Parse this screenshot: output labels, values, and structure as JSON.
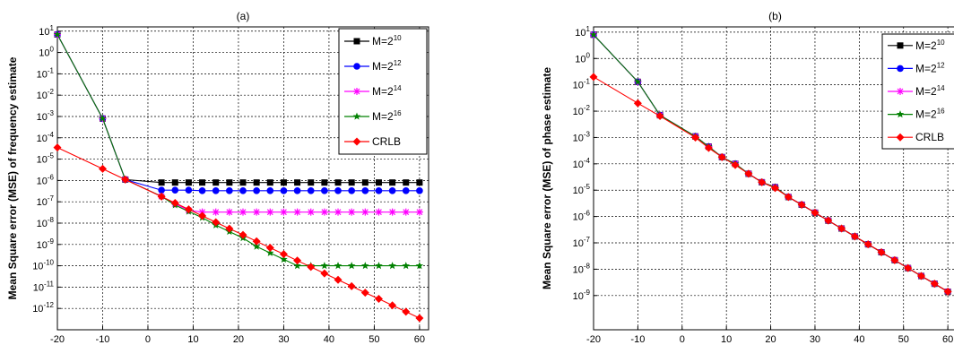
{
  "chart_data": [
    {
      "type": "line",
      "title": "(a)",
      "xlabel": "SNR (dB)",
      "ylabel": "Mean Square error (MSE) of frequency estimate",
      "x_ticks": [
        -20,
        -10,
        0,
        10,
        20,
        30,
        40,
        50,
        60
      ],
      "y_tick_exponents": [
        1,
        0,
        -1,
        -2,
        -3,
        -4,
        -5,
        -6,
        -7,
        -8,
        -9,
        -10,
        -11,
        -12
      ],
      "xlim": [
        -20,
        62
      ],
      "ylim_log10": [
        -13,
        1.2
      ],
      "y_scale": "log",
      "grid": true,
      "legend_position": "top-right",
      "series": [
        {
          "name": "M=2",
          "name_sup": "10",
          "color": "#000000",
          "marker": "square",
          "x": [
            -20,
            -10,
            -5,
            3,
            6,
            9,
            12,
            15,
            18,
            21,
            24,
            27,
            30,
            33,
            36,
            39,
            42,
            45,
            48,
            51,
            54,
            57,
            60
          ],
          "y": [
            7,
            0.0008,
            1.1e-06,
            8e-07,
            8e-07,
            8e-07,
            8e-07,
            8e-07,
            8e-07,
            8e-07,
            8e-07,
            8e-07,
            8e-07,
            8e-07,
            8e-07,
            8e-07,
            8e-07,
            8e-07,
            8e-07,
            8e-07,
            8e-07,
            8e-07,
            8e-07
          ]
        },
        {
          "name": "M=2",
          "name_sup": "12",
          "color": "#0000ff",
          "marker": "circle",
          "x": [
            -20,
            -10,
            -5,
            3,
            6,
            9,
            12,
            15,
            18,
            21,
            24,
            27,
            30,
            33,
            36,
            39,
            42,
            45,
            48,
            51,
            54,
            57,
            60
          ],
          "y": [
            7,
            0.0008,
            1.1e-06,
            3.5e-07,
            3.5e-07,
            3.5e-07,
            3.3e-07,
            3.3e-07,
            3.3e-07,
            3.3e-07,
            3.3e-07,
            3.3e-07,
            3.3e-07,
            3.3e-07,
            3.3e-07,
            3.3e-07,
            3.3e-07,
            3.3e-07,
            3.3e-07,
            3.3e-07,
            3.3e-07,
            3.3e-07,
            3.3e-07
          ]
        },
        {
          "name": "M=2",
          "name_sup": "14",
          "color": "#ff00ff",
          "marker": "asterisk",
          "x": [
            -20,
            -10,
            -5,
            3,
            6,
            9,
            12,
            15,
            18,
            21,
            24,
            27,
            30,
            33,
            36,
            39,
            42,
            45,
            48,
            51,
            54,
            57,
            60
          ],
          "y": [
            7,
            0.0008,
            1.1e-06,
            1.8e-07,
            8e-08,
            4e-08,
            3.3e-08,
            3.3e-08,
            3.3e-08,
            3.3e-08,
            3.3e-08,
            3.3e-08,
            3.3e-08,
            3.3e-08,
            3.3e-08,
            3.3e-08,
            3.3e-08,
            3.3e-08,
            3.3e-08,
            3.3e-08,
            3.3e-08,
            3.3e-08,
            3.3e-08
          ]
        },
        {
          "name": "M=2",
          "name_sup": "16",
          "color": "#008000",
          "marker": "star",
          "x": [
            -20,
            -10,
            -5,
            3,
            6,
            9,
            12,
            15,
            18,
            21,
            24,
            27,
            30,
            33,
            36,
            39,
            42,
            45,
            48,
            51,
            54,
            57,
            60
          ],
          "y": [
            7,
            0.0008,
            1.1e-06,
            1.8e-07,
            7e-08,
            3.5e-08,
            1.8e-08,
            8e-09,
            4e-09,
            2e-09,
            8e-10,
            4e-10,
            2e-10,
            1e-10,
            1e-10,
            1e-10,
            1e-10,
            1e-10,
            1e-10,
            1e-10,
            1e-10,
            1e-10,
            1e-10
          ]
        },
        {
          "name": "CRLB",
          "color": "#ff0000",
          "marker": "diamond",
          "x": [
            -20,
            -10,
            -5,
            3,
            6,
            9,
            12,
            15,
            18,
            21,
            24,
            27,
            30,
            33,
            36,
            39,
            42,
            45,
            48,
            51,
            54,
            57,
            60
          ],
          "y": [
            3.5e-05,
            3.5e-06,
            1.1e-06,
            1.75e-07,
            8.8e-08,
            4.4e-08,
            2.2e-08,
            1.1e-08,
            5.5e-09,
            2.8e-09,
            1.4e-09,
            7e-10,
            3.5e-10,
            1.75e-10,
            8.8e-11,
            4.4e-11,
            2.2e-11,
            1.1e-11,
            5.5e-12,
            2.8e-12,
            1.4e-12,
            7e-13,
            3.5e-13
          ]
        }
      ]
    },
    {
      "type": "line",
      "title": "(b)",
      "xlabel": "SNR (dB)",
      "ylabel": "Mean Square error (MSE) of phase estimate",
      "x_ticks": [
        -20,
        -10,
        0,
        10,
        20,
        30,
        40,
        50,
        60
      ],
      "y_tick_exponents": [
        1,
        0,
        -1,
        -2,
        -3,
        -4,
        -5,
        -6,
        -7,
        -8,
        -9
      ],
      "xlim": [
        -20,
        62
      ],
      "ylim_log10": [
        -10.3,
        1.2
      ],
      "y_scale": "log",
      "grid": true,
      "legend_position": "top-right",
      "series": [
        {
          "name": "M=2",
          "name_sup": "10",
          "color": "#000000",
          "marker": "square",
          "x": [
            -20,
            -10,
            -5,
            3,
            6,
            9,
            12,
            15,
            18,
            21,
            24,
            27,
            30,
            33,
            36,
            39,
            42,
            45,
            48,
            51,
            54,
            57,
            60
          ],
          "y": [
            8,
            0.13,
            0.007,
            0.0011,
            0.00045,
            0.00018,
            0.0001,
            4.2e-05,
            2e-05,
            1.3e-05,
            5.5e-06,
            2.8e-06,
            1.4e-06,
            7e-07,
            3.5e-07,
            1.75e-07,
            8.8e-08,
            4.4e-08,
            2.2e-08,
            1.1e-08,
            5.5e-09,
            2.8e-09,
            1.4e-09
          ]
        },
        {
          "name": "M=2",
          "name_sup": "12",
          "color": "#0000ff",
          "marker": "circle",
          "x": [
            -20,
            -10,
            -5,
            3,
            6,
            9,
            12,
            15,
            18,
            21,
            24,
            27,
            30,
            33,
            36,
            39,
            42,
            45,
            48,
            51,
            54,
            57,
            60
          ],
          "y": [
            8,
            0.13,
            0.007,
            0.0011,
            0.00045,
            0.00018,
            0.0001,
            4.2e-05,
            2e-05,
            1.3e-05,
            5.5e-06,
            2.8e-06,
            1.4e-06,
            7e-07,
            3.5e-07,
            1.75e-07,
            8.8e-08,
            4.4e-08,
            2.2e-08,
            1.1e-08,
            5.5e-09,
            2.8e-09,
            1.4e-09
          ]
        },
        {
          "name": "M=2",
          "name_sup": "14",
          "color": "#ff00ff",
          "marker": "asterisk",
          "x": [
            -20,
            -10,
            -5,
            3,
            6,
            9,
            12,
            15,
            18,
            21,
            24,
            27,
            30,
            33,
            36,
            39,
            42,
            45,
            48,
            51,
            54,
            57,
            60
          ],
          "y": [
            8,
            0.13,
            0.007,
            0.0011,
            0.00045,
            0.00018,
            0.0001,
            4.2e-05,
            2e-05,
            1.3e-05,
            5.5e-06,
            2.8e-06,
            1.4e-06,
            7e-07,
            3.5e-07,
            1.75e-07,
            8.8e-08,
            4.4e-08,
            2.2e-08,
            1.1e-08,
            5.5e-09,
            2.8e-09,
            1.4e-09
          ]
        },
        {
          "name": "M=2",
          "name_sup": "16",
          "color": "#008000",
          "marker": "star",
          "x": [
            -20,
            -10,
            -5,
            3,
            6,
            9,
            12,
            15,
            18,
            21,
            24,
            27,
            30,
            33,
            36,
            39,
            42,
            45,
            48,
            51,
            54,
            57,
            60
          ],
          "y": [
            8,
            0.13,
            0.007,
            0.0011,
            0.00045,
            0.00018,
            0.0001,
            4.2e-05,
            2e-05,
            1.3e-05,
            5.5e-06,
            2.8e-06,
            1.4e-06,
            7e-07,
            3.5e-07,
            1.75e-07,
            8.8e-08,
            4.4e-08,
            2.2e-08,
            1.1e-08,
            5.5e-09,
            2.8e-09,
            1.4e-09
          ]
        },
        {
          "name": "CRLB",
          "color": "#ff0000",
          "marker": "diamond",
          "x": [
            -20,
            -10,
            -5,
            3,
            6,
            9,
            12,
            15,
            18,
            21,
            24,
            27,
            30,
            33,
            36,
            39,
            42,
            45,
            48,
            51,
            54,
            57,
            60
          ],
          "y": [
            0.2,
            0.02,
            0.0065,
            0.001,
            0.0004,
            0.00018,
            9e-05,
            4.2e-05,
            2e-05,
            1.2e-05,
            5.5e-06,
            2.8e-06,
            1.4e-06,
            7e-07,
            3.5e-07,
            1.75e-07,
            8.8e-08,
            4.4e-08,
            2.2e-08,
            1.1e-08,
            5.5e-09,
            2.8e-09,
            1.4e-09
          ]
        }
      ]
    }
  ]
}
